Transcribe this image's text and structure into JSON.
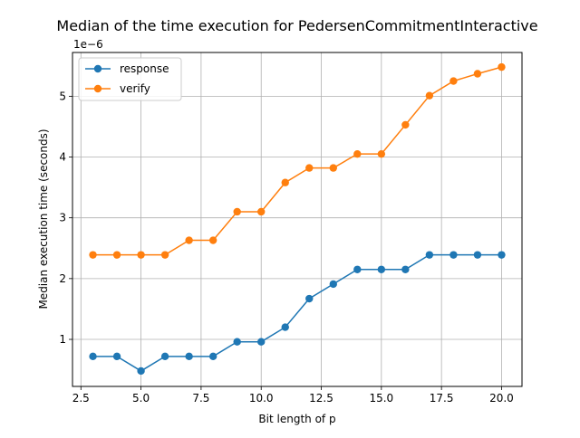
{
  "chart_data": {
    "type": "line",
    "title": "Median of the time execution for PedersenCommitmentInteractive",
    "xlabel": "Bit length of p",
    "ylabel": "Median execution time (seconds)",
    "y_offset_label": "1e−6",
    "x": [
      3,
      4,
      5,
      6,
      7,
      8,
      9,
      10,
      11,
      12,
      13,
      14,
      15,
      16,
      17,
      18,
      19,
      20
    ],
    "xlim": [
      2.15,
      20.85
    ],
    "ylim": [
      0.226,
      5.72
    ],
    "xticks": [
      2.5,
      5.0,
      7.5,
      10.0,
      12.5,
      15.0,
      17.5,
      20.0
    ],
    "xtick_labels": [
      "2.5",
      "5.0",
      "7.5",
      "10.0",
      "12.5",
      "15.0",
      "17.5",
      "20.0"
    ],
    "yticks": [
      1,
      2,
      3,
      4,
      5
    ],
    "ytick_labels": [
      "1",
      "2",
      "3",
      "4",
      "5"
    ],
    "grid": true,
    "legend_position": "top-left",
    "series": [
      {
        "name": "response",
        "color": "#1f77b4",
        "values": [
          0.72,
          0.72,
          0.48,
          0.72,
          0.72,
          0.72,
          0.96,
          0.96,
          1.2,
          1.67,
          1.91,
          2.15,
          2.15,
          2.15,
          2.39,
          2.39,
          2.39,
          2.39
        ]
      },
      {
        "name": "verify",
        "color": "#ff7f0e",
        "values": [
          2.39,
          2.39,
          2.39,
          2.39,
          2.63,
          2.63,
          3.1,
          3.1,
          3.58,
          3.82,
          3.82,
          4.05,
          4.05,
          4.53,
          5.01,
          5.25,
          5.37,
          5.48
        ]
      }
    ]
  }
}
